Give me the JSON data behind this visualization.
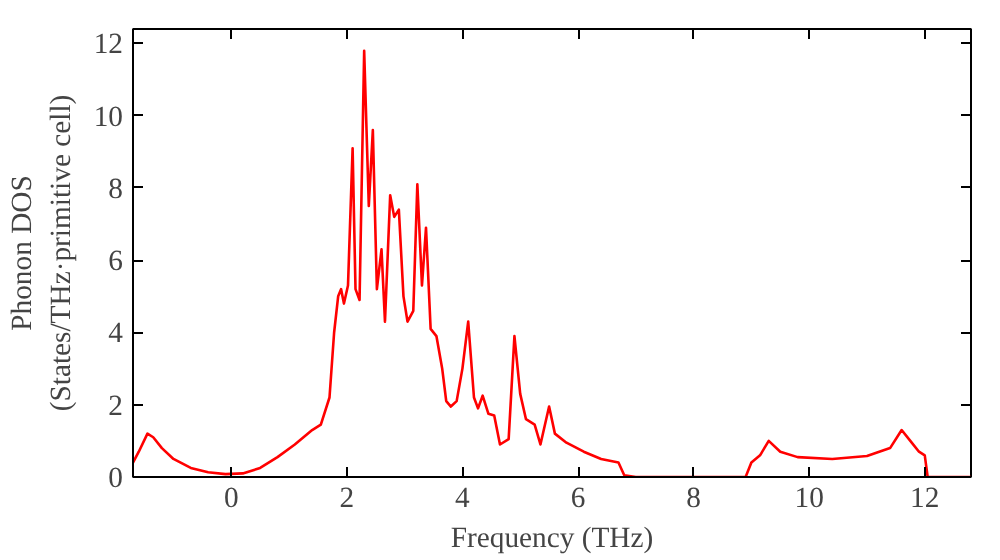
{
  "chart_data": {
    "type": "line",
    "xlabel": "Frequency (THz)",
    "ylabel": "Phonon DOS\n(States/THz·primitive cell)",
    "xlim": [
      -1.7,
      12.8
    ],
    "ylim": [
      0,
      12.4
    ],
    "xticks": [
      0,
      2,
      4,
      6,
      8,
      10,
      12
    ],
    "yticks": [
      0,
      2,
      4,
      6,
      8,
      10,
      12
    ],
    "grid": false,
    "series": [
      {
        "color": "#ff0000",
        "x": [
          -1.7,
          -1.6,
          -1.45,
          -1.35,
          -1.2,
          -1.0,
          -0.7,
          -0.4,
          -0.1,
          0.2,
          0.5,
          0.8,
          1.1,
          1.4,
          1.55,
          1.7,
          1.78,
          1.85,
          1.9,
          1.95,
          2.02,
          2.1,
          2.15,
          2.22,
          2.3,
          2.38,
          2.45,
          2.52,
          2.6,
          2.66,
          2.75,
          2.82,
          2.9,
          2.98,
          3.05,
          3.15,
          3.22,
          3.3,
          3.37,
          3.45,
          3.55,
          3.65,
          3.72,
          3.8,
          3.9,
          4.0,
          4.1,
          4.2,
          4.27,
          4.35,
          4.45,
          4.55,
          4.65,
          4.8,
          4.9,
          5.0,
          5.1,
          5.25,
          5.35,
          5.5,
          5.6,
          5.8,
          6.1,
          6.4,
          6.7,
          6.8,
          7.0,
          8.9,
          9.0,
          9.15,
          9.3,
          9.5,
          9.8,
          10.4,
          11.0,
          11.4,
          11.6,
          11.75,
          11.9,
          12.0,
          12.05,
          12.8
        ],
        "values": [
          0.4,
          0.7,
          1.2,
          1.1,
          0.8,
          0.5,
          0.25,
          0.13,
          0.08,
          0.1,
          0.25,
          0.55,
          0.9,
          1.3,
          1.45,
          2.2,
          4.0,
          5.0,
          5.2,
          4.8,
          5.3,
          9.1,
          5.2,
          4.9,
          11.8,
          7.5,
          9.6,
          5.2,
          6.3,
          4.3,
          7.8,
          7.2,
          7.4,
          5.0,
          4.3,
          4.6,
          8.1,
          5.3,
          6.9,
          4.1,
          3.9,
          3.0,
          2.1,
          1.95,
          2.1,
          3.0,
          4.3,
          2.2,
          1.9,
          2.25,
          1.75,
          1.7,
          0.9,
          1.05,
          3.9,
          2.3,
          1.6,
          1.45,
          0.9,
          1.95,
          1.2,
          0.95,
          0.7,
          0.5,
          0.4,
          0.05,
          0,
          0,
          0.4,
          0.6,
          1.0,
          0.7,
          0.55,
          0.5,
          0.58,
          0.8,
          1.3,
          1.0,
          0.7,
          0.6,
          0,
          0
        ]
      }
    ]
  }
}
